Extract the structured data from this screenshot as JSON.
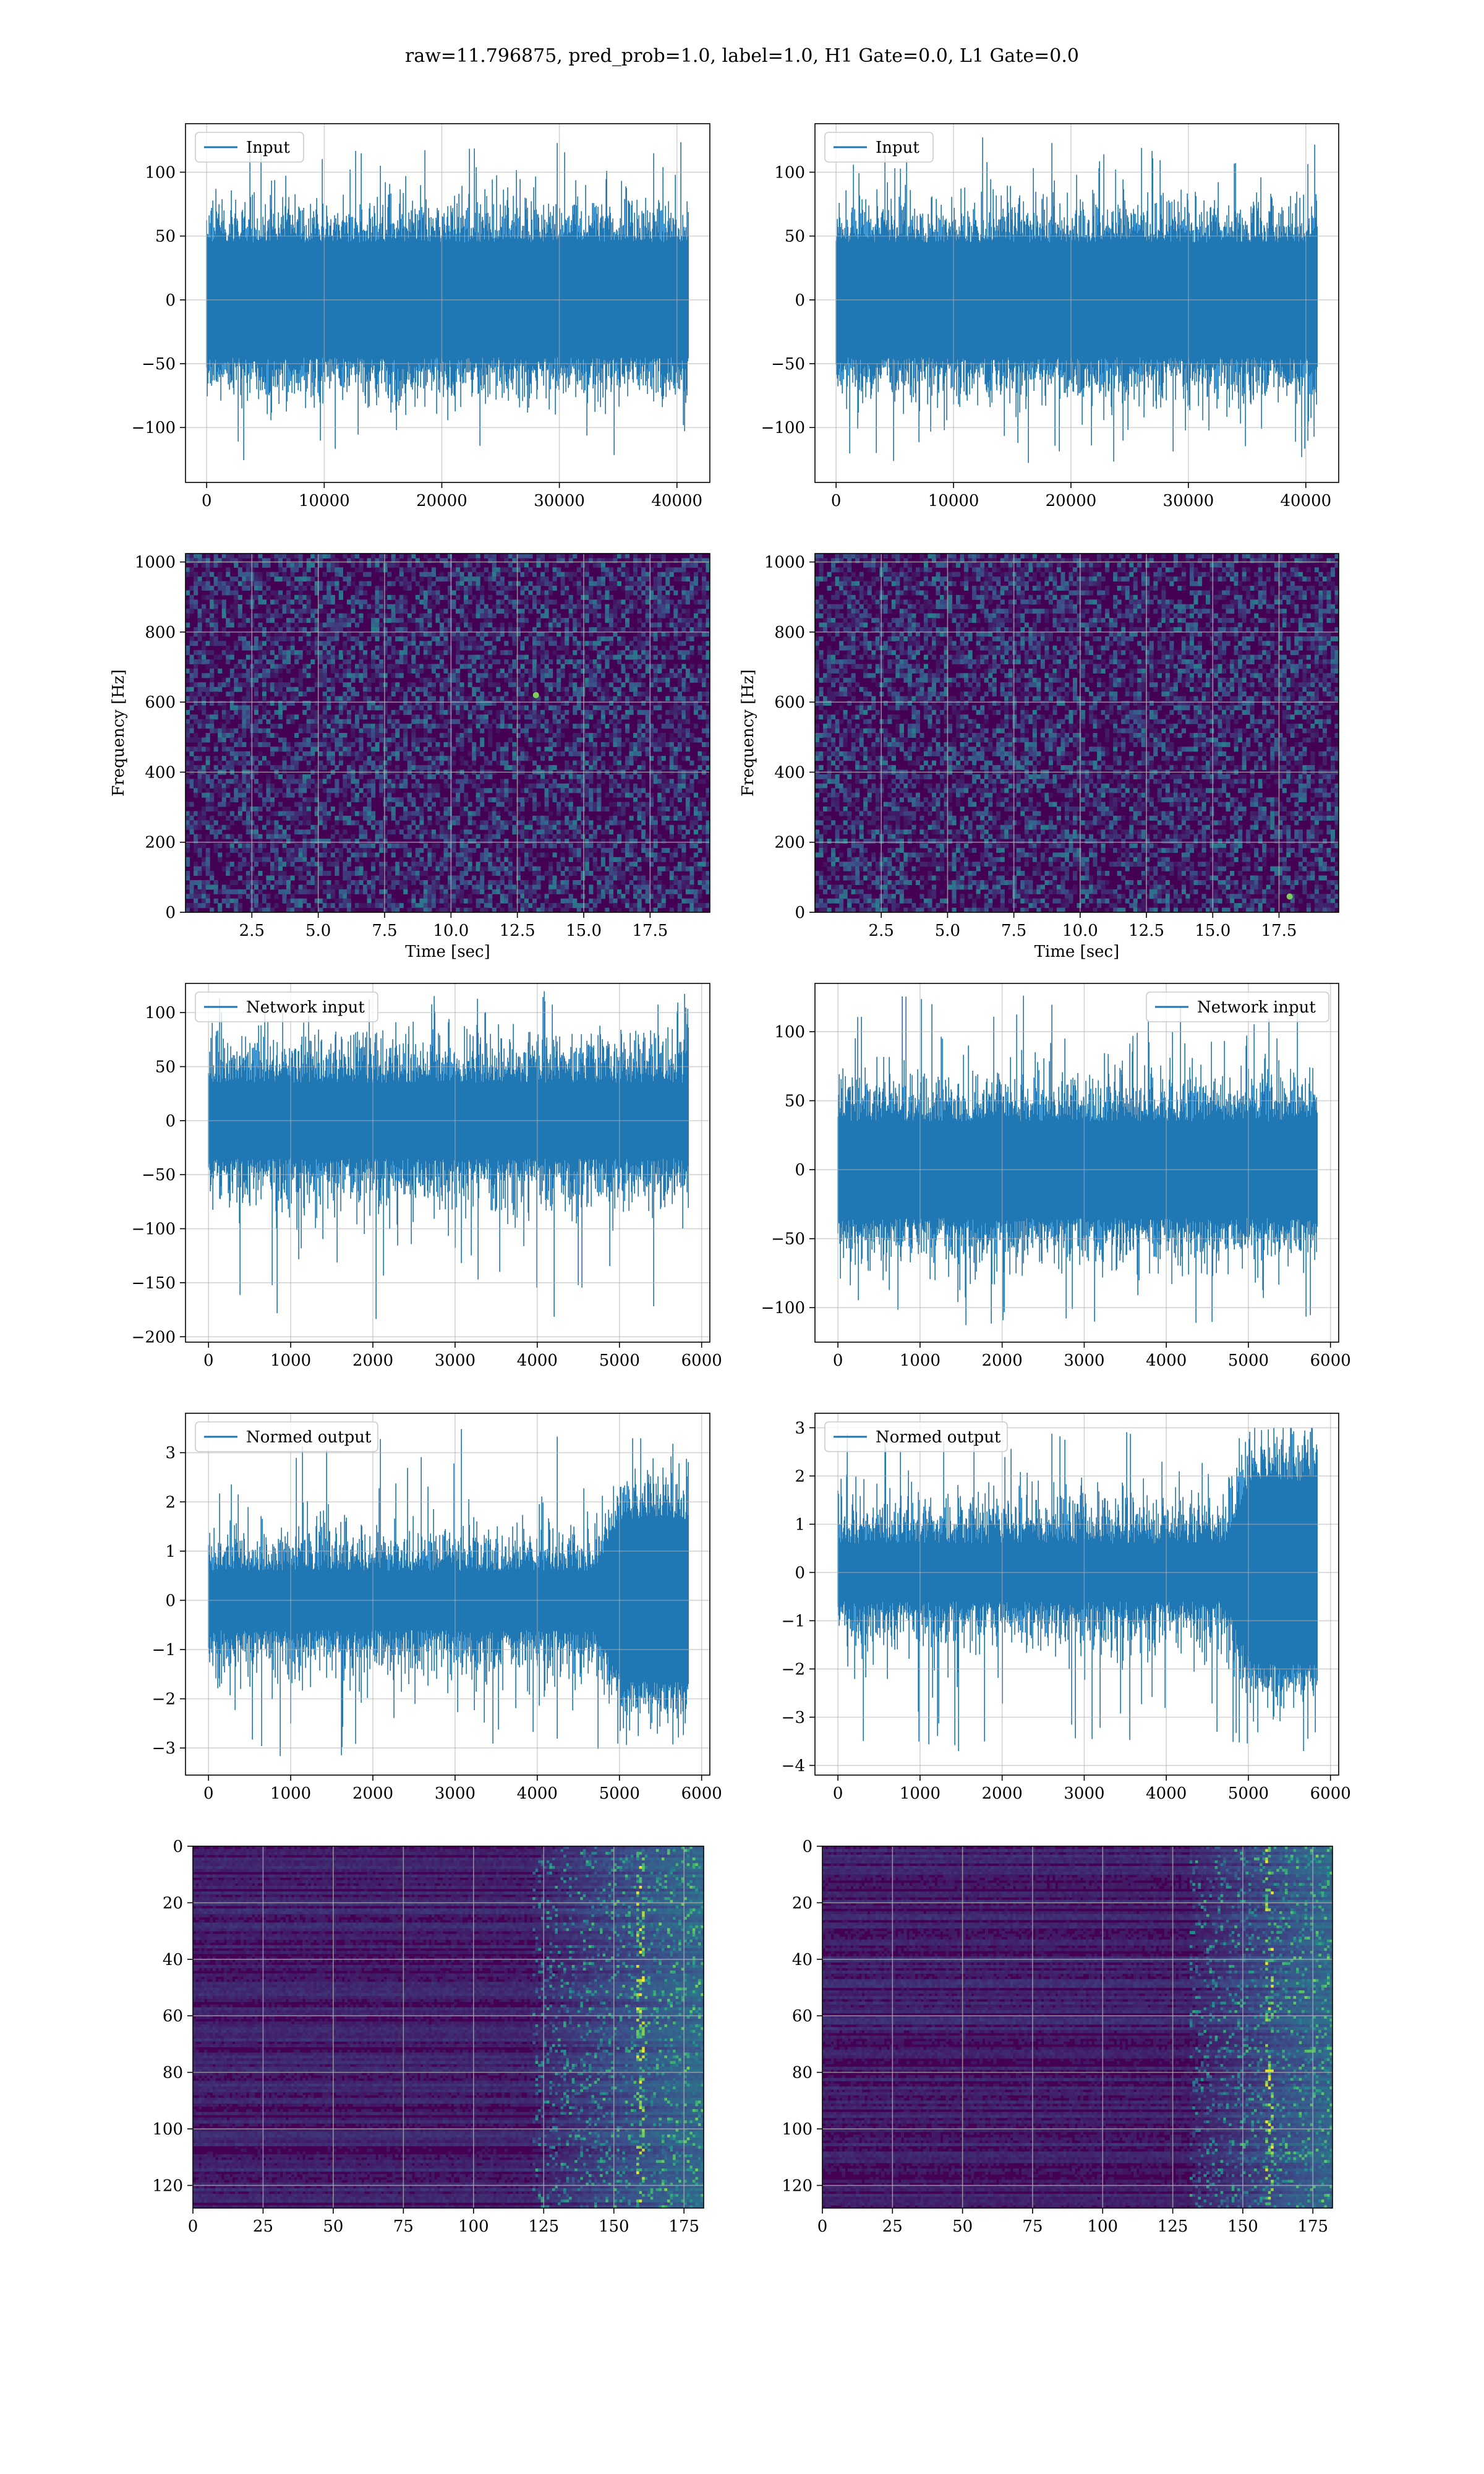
{
  "figure": {
    "suptitle": "raw=11.796875, pred_prob=1.0, label=1.0, H1 Gate=0.0, L1 Gate=0.0"
  },
  "colors": {
    "line": "#1f77b4",
    "viridis_bg": "#440154",
    "grid": "#b0b0b0",
    "spine": "#000000"
  },
  "chart_data": [
    {
      "type": "line",
      "panel": "row1-left",
      "title": "",
      "xlabel": "",
      "ylabel": "",
      "legend": "Input",
      "legend_position": "upper left",
      "grid": true,
      "xlim": [
        -1800,
        42800
      ],
      "ylim": [
        -143,
        138
      ],
      "xticks": [
        0,
        10000,
        20000,
        30000,
        40000
      ],
      "yticks": [
        -100,
        -50,
        0,
        50,
        100
      ],
      "series": [
        {
          "name": "Input",
          "n_points": 40960,
          "envelope_min": -128,
          "envelope_max": 124,
          "typical_band": [
            -45,
            45
          ]
        }
      ]
    },
    {
      "type": "line",
      "panel": "row1-right",
      "title": "",
      "xlabel": "",
      "ylabel": "",
      "legend": "Input",
      "legend_position": "upper left",
      "grid": true,
      "xlim": [
        -1800,
        42800
      ],
      "ylim": [
        -143,
        138
      ],
      "xticks": [
        0,
        10000,
        20000,
        30000,
        40000
      ],
      "yticks": [
        -100,
        -50,
        0,
        50,
        100
      ],
      "series": [
        {
          "name": "Input",
          "n_points": 40960,
          "envelope_min": -128,
          "envelope_max": 128,
          "typical_band": [
            -45,
            45
          ]
        }
      ]
    },
    {
      "type": "heatmap",
      "panel": "row2-left",
      "title": "",
      "xlabel": "Time [sec]",
      "ylabel": "Frequency [Hz]",
      "grid": true,
      "xlim": [
        0,
        19.75
      ],
      "ylim": [
        0,
        1024
      ],
      "xticks": [
        2.5,
        5.0,
        7.5,
        10.0,
        12.5,
        15.0,
        17.5
      ],
      "yticks": [
        0,
        200,
        400,
        600,
        800,
        1000
      ],
      "colormap": "viridis",
      "bright_spots": [
        {
          "t": 13.2,
          "f": 620
        }
      ]
    },
    {
      "type": "heatmap",
      "panel": "row2-right",
      "title": "",
      "xlabel": "Time [sec]",
      "ylabel": "Frequency [Hz]",
      "grid": true,
      "xlim": [
        0,
        19.75
      ],
      "ylim": [
        0,
        1024
      ],
      "xticks": [
        2.5,
        5.0,
        7.5,
        10.0,
        12.5,
        15.0,
        17.5
      ],
      "yticks": [
        0,
        200,
        400,
        600,
        800,
        1000
      ],
      "colormap": "viridis",
      "bright_spots": [
        {
          "t": 17.9,
          "f": 45
        }
      ]
    },
    {
      "type": "line",
      "panel": "row3-left",
      "title": "",
      "xlabel": "",
      "ylabel": "",
      "legend": "Network input",
      "legend_position": "upper left",
      "grid": true,
      "xlim": [
        -280,
        6100
      ],
      "ylim": [
        -205,
        127
      ],
      "xticks": [
        0,
        1000,
        2000,
        3000,
        4000,
        5000,
        6000
      ],
      "yticks": [
        -200,
        -150,
        -100,
        -50,
        0,
        50,
        100
      ],
      "series": [
        {
          "name": "Network input",
          "n_points": 5840,
          "envelope_min": -185,
          "envelope_max": 120,
          "typical_band": [
            -35,
            35
          ]
        }
      ]
    },
    {
      "type": "line",
      "panel": "row3-right",
      "title": "",
      "xlabel": "",
      "ylabel": "",
      "legend": "Network input",
      "legend_position": "upper right",
      "grid": true,
      "xlim": [
        -280,
        6100
      ],
      "ylim": [
        -125,
        135
      ],
      "xticks": [
        0,
        1000,
        2000,
        3000,
        4000,
        5000,
        6000
      ],
      "yticks": [
        -100,
        -50,
        0,
        50,
        100
      ],
      "series": [
        {
          "name": "Network input",
          "n_points": 5840,
          "envelope_min": -113,
          "envelope_max": 128,
          "typical_band": [
            -35,
            35
          ]
        }
      ]
    },
    {
      "type": "line",
      "panel": "row4-left",
      "title": "",
      "xlabel": "",
      "ylabel": "",
      "legend": "Normed output",
      "legend_position": "upper left",
      "grid": true,
      "xlim": [
        -280,
        6100
      ],
      "ylim": [
        -3.55,
        3.8
      ],
      "xticks": [
        0,
        1000,
        2000,
        3000,
        4000,
        5000,
        6000
      ],
      "yticks": [
        -3,
        -2,
        -1,
        0,
        1,
        2,
        3
      ],
      "series": [
        {
          "name": "Normed output",
          "n_points": 5840,
          "envelope_min": -3.2,
          "envelope_max": 3.5,
          "typical_band": [
            -0.6,
            0.6
          ],
          "burst_start": 4700,
          "burst_band": [
            -1.5,
            1.8
          ]
        }
      ]
    },
    {
      "type": "line",
      "panel": "row4-right",
      "title": "",
      "xlabel": "",
      "ylabel": "",
      "legend": "Normed output",
      "legend_position": "upper left",
      "grid": true,
      "xlim": [
        -280,
        6100
      ],
      "ylim": [
        -4.2,
        3.3
      ],
      "xticks": [
        0,
        1000,
        2000,
        3000,
        4000,
        5000,
        6000
      ],
      "yticks": [
        -4,
        -3,
        -2,
        -1,
        0,
        1,
        2,
        3
      ],
      "series": [
        {
          "name": "Normed output",
          "n_points": 5840,
          "envelope_min": -3.8,
          "envelope_max": 3.0,
          "typical_band": [
            -0.6,
            0.6
          ],
          "burst_start": 4700,
          "burst_band": [
            -2.0,
            1.8
          ]
        }
      ]
    },
    {
      "type": "heatmap",
      "panel": "row5-left",
      "title": "",
      "xlabel": "",
      "ylabel": "",
      "grid": true,
      "xlim": [
        0,
        182
      ],
      "ylim": [
        128,
        0
      ],
      "xticks": [
        0,
        25,
        50,
        75,
        100,
        125,
        150,
        175
      ],
      "yticks": [
        0,
        20,
        40,
        60,
        80,
        100,
        120
      ],
      "colormap": "viridis",
      "n_rows": 128,
      "n_cols": 182,
      "activity_onset": 120,
      "hot_column": 159
    },
    {
      "type": "heatmap",
      "panel": "row5-right",
      "title": "",
      "xlabel": "",
      "ylabel": "",
      "grid": true,
      "xlim": [
        0,
        182
      ],
      "ylim": [
        128,
        0
      ],
      "xticks": [
        0,
        25,
        50,
        75,
        100,
        125,
        150,
        175
      ],
      "yticks": [
        0,
        20,
        40,
        60,
        80,
        100,
        120
      ],
      "colormap": "viridis",
      "n_rows": 128,
      "n_cols": 182,
      "activity_onset": 130,
      "hot_column": 159
    }
  ]
}
